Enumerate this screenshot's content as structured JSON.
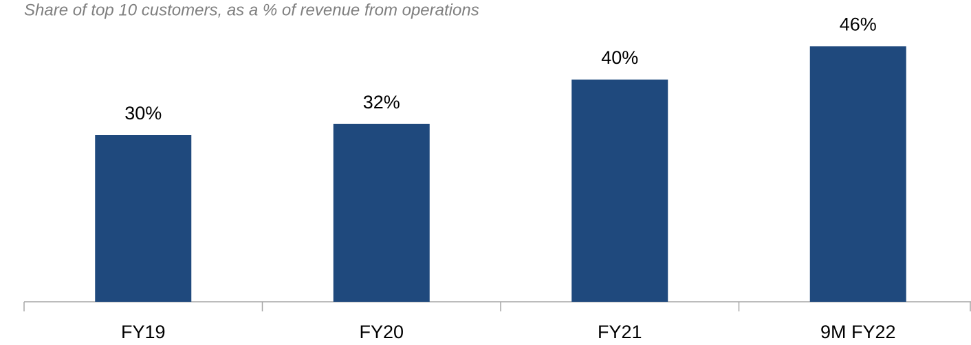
{
  "chart_data": {
    "type": "bar",
    "title": "Share of top 10 customers, as a % of revenue from operations",
    "categories": [
      "FY19",
      "FY20",
      "FY21",
      "9M FY22"
    ],
    "values": [
      30,
      32,
      40,
      46
    ],
    "value_labels": [
      "30%",
      "32%",
      "40%",
      "46%"
    ],
    "color": "#1f497d"
  }
}
